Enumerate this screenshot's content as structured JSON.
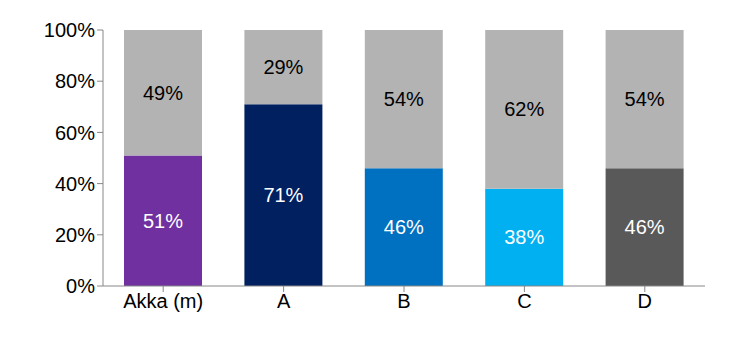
{
  "chart_data": {
    "type": "bar",
    "stacked": true,
    "data_labels": true,
    "grid": false,
    "categories": [
      "Akka (m)",
      "A",
      "B",
      "C",
      "D"
    ],
    "series": [
      {
        "colors": [
          "#7030a0",
          "#002060",
          "#0070c0",
          "#00b0f0",
          "#595959"
        ],
        "values": [
          51,
          71,
          46,
          38,
          46
        ],
        "value_labels": [
          "51%",
          "71%",
          "46%",
          "38%",
          "46%"
        ]
      },
      {
        "color": "#b3b3b3",
        "values": [
          49,
          29,
          54,
          62,
          54
        ],
        "value_labels": [
          "49%",
          "29%",
          "54%",
          "62%",
          "54%"
        ]
      }
    ],
    "ylim": [
      0,
      100
    ],
    "yticks": [
      {
        "value": 0,
        "label": "0%"
      },
      {
        "value": 20,
        "label": "20%"
      },
      {
        "value": 40,
        "label": "40%"
      },
      {
        "value": 60,
        "label": "60%"
      },
      {
        "value": 80,
        "label": "80%"
      },
      {
        "value": 100,
        "label": "100%"
      }
    ]
  }
}
